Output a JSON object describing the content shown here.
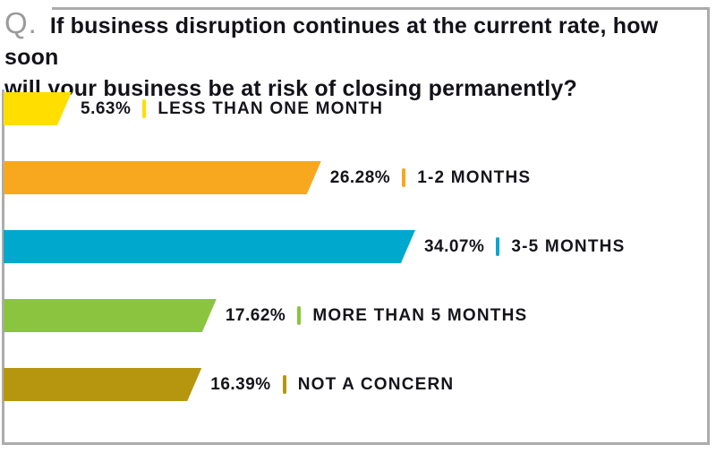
{
  "header": {
    "q_label": "Q.",
    "question_line1": "If business disruption continues at the current rate, how soon",
    "question_line2": "will your business be at risk of closing permanently?"
  },
  "chart_data": {
    "type": "bar",
    "orientation": "horizontal",
    "title": "If business disruption continues at the current rate, how soon will your business be at risk of closing permanently?",
    "unit": "%",
    "xlim": [
      0,
      59
    ],
    "grid": false,
    "legend": "none",
    "categories": [
      "LESS THAN ONE MONTH",
      "1-2 MONTHS",
      "3-5 MONTHS",
      "MORE THAN 5 MONTHS",
      "NOT A CONCERN"
    ],
    "values": [
      5.63,
      26.28,
      34.07,
      17.62,
      16.39
    ],
    "items": [
      {
        "label": "LESS THAN ONE MONTH",
        "value": 5.63,
        "value_label": "5.63%",
        "color": "#ffde00"
      },
      {
        "label": "1-2 MONTHS",
        "value": 26.28,
        "value_label": "26.28%",
        "color": "#f7a81e"
      },
      {
        "label": "3-5 MONTHS",
        "value": 34.07,
        "value_label": "34.07%",
        "color": "#00a8cd"
      },
      {
        "label": "MORE THAN 5 MONTHS",
        "value": 17.62,
        "value_label": "17.62%",
        "color": "#8bc540"
      },
      {
        "label": "NOT A CONCERN",
        "value": 16.39,
        "value_label": "16.39%",
        "color": "#b6960e"
      }
    ]
  },
  "style": {
    "frame_color": "#acacac",
    "text_color": "#16141b",
    "q_color": "#9b9b9b"
  }
}
